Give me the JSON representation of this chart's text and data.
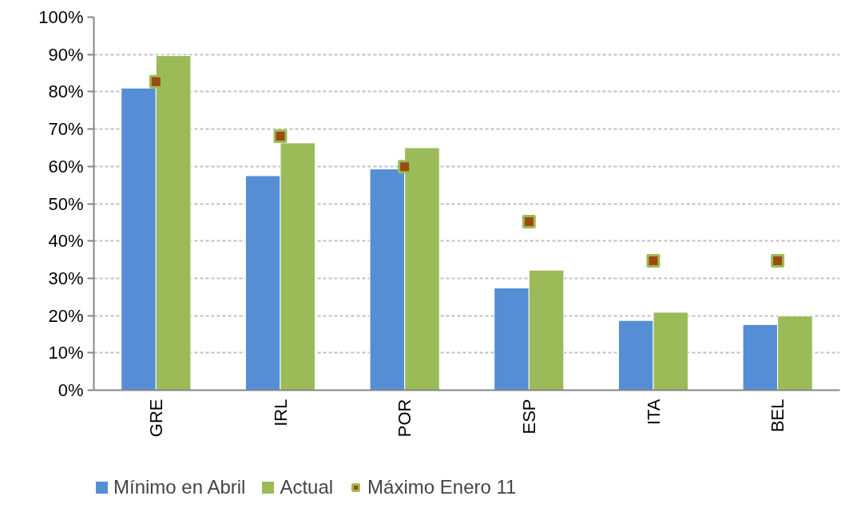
{
  "chart_data": {
    "type": "bar",
    "categories": [
      "GRE",
      "IRL",
      "POR",
      "ESP",
      "ITA",
      "BEL"
    ],
    "series": [
      {
        "name": "Mínimo en Abril",
        "color": "#558ed5",
        "values": [
          81,
          57.5,
          59.3,
          27.4,
          18.7,
          17.6
        ]
      },
      {
        "name": "Actual",
        "color": "#9bbb59",
        "values": [
          89.7,
          66.3,
          65,
          32.2,
          20.9,
          19.9
        ]
      },
      {
        "name": "Máximo Enero 11",
        "type": "scatter",
        "marker": "square",
        "color": "#9c4a0e",
        "values": [
          82.7,
          68.1,
          59.9,
          45.2,
          34.7,
          34.7
        ]
      }
    ],
    "ylim": [
      0,
      100
    ],
    "yticks": [
      {
        "value": 0,
        "label": "0%"
      },
      {
        "value": 10,
        "label": "10%"
      },
      {
        "value": 20,
        "label": "20%"
      },
      {
        "value": 30,
        "label": "30%"
      },
      {
        "value": 40,
        "label": "40%"
      },
      {
        "value": 50,
        "label": "50%"
      },
      {
        "value": 60,
        "label": "60%"
      },
      {
        "value": 70,
        "label": "70%"
      },
      {
        "value": 80,
        "label": "80%"
      },
      {
        "value": 90,
        "label": "90%"
      },
      {
        "value": 100,
        "label": "100%"
      }
    ],
    "grid": "y",
    "legend": "bottom"
  }
}
